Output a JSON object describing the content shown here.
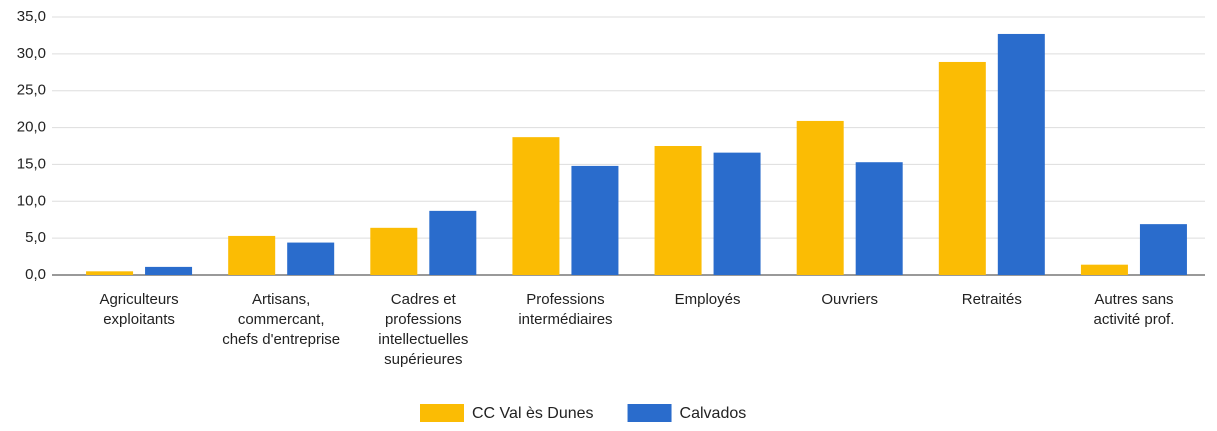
{
  "chart_data": {
    "type": "bar",
    "categories": [
      "Agriculteurs\nexploitants",
      "Artisans,\ncommercant,\nchefs d'entreprise",
      "Cadres et\nprofessions\nintellectuelles\nsupérieures",
      "Professions\nintermédiaires",
      "Employés",
      "Ouvriers",
      "Retraités",
      "Autres sans\nactivité prof."
    ],
    "series": [
      {
        "name": "CC Val ès Dunes",
        "color": "#fbbc04",
        "values": [
          0.5,
          5.3,
          6.4,
          18.7,
          17.5,
          20.9,
          28.9,
          1.4
        ]
      },
      {
        "name": "Calvados",
        "color": "#2a6ccc",
        "values": [
          1.1,
          4.4,
          8.7,
          14.8,
          16.6,
          15.3,
          32.7,
          6.9
        ]
      }
    ],
    "ylim": [
      0,
      35
    ],
    "yticks": [
      {
        "value": 0,
        "label": "0,0"
      },
      {
        "value": 5,
        "label": "5,0"
      },
      {
        "value": 10,
        "label": "10,0"
      },
      {
        "value": 15,
        "label": "15,0"
      },
      {
        "value": 20,
        "label": "20,0"
      },
      {
        "value": 25,
        "label": "25,0"
      },
      {
        "value": 30,
        "label": "30,0"
      },
      {
        "value": 35,
        "label": "35,0"
      }
    ],
    "grid": true,
    "legend": "bottom"
  }
}
